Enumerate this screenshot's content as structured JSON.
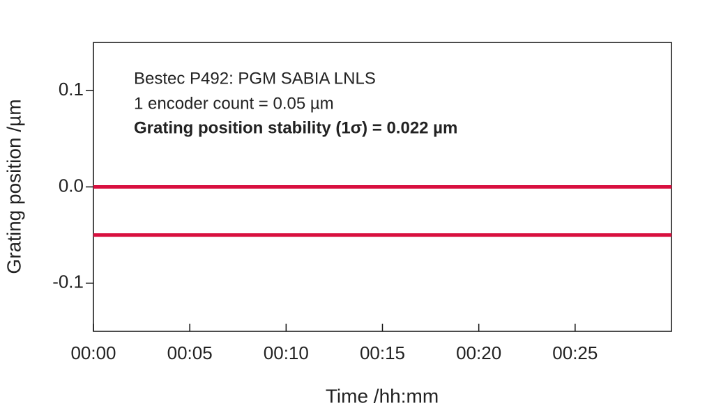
{
  "chart_data": {
    "type": "line",
    "xlabel": "Time /hh:mm",
    "ylabel": "Grating position /µm",
    "annotations": [
      "Bestec P492: PGM SABIA LNLS",
      "1 encoder count = 0.05 µm",
      "Grating position stability (1σ) = 0.022 µm"
    ],
    "xlim": [
      0,
      30
    ],
    "xticks": [
      {
        "value": 0,
        "label": "00:00"
      },
      {
        "value": 5,
        "label": "00:05"
      },
      {
        "value": 10,
        "label": "00:10"
      },
      {
        "value": 15,
        "label": "00:15"
      },
      {
        "value": 20,
        "label": "00:20"
      },
      {
        "value": 25,
        "label": "00:25"
      }
    ],
    "ylim": [
      -0.15,
      0.15
    ],
    "yticks": [
      -0.1,
      {
        "value": 0,
        "label": "0.0"
      },
      0.1
    ],
    "series": [
      {
        "color": "#d8103f",
        "x": [
          0,
          30
        ],
        "values": [
          0,
          0
        ]
      },
      {
        "color": "#d8103f",
        "x": [
          0,
          30
        ],
        "values": [
          -0.05,
          -0.05
        ]
      }
    ]
  }
}
